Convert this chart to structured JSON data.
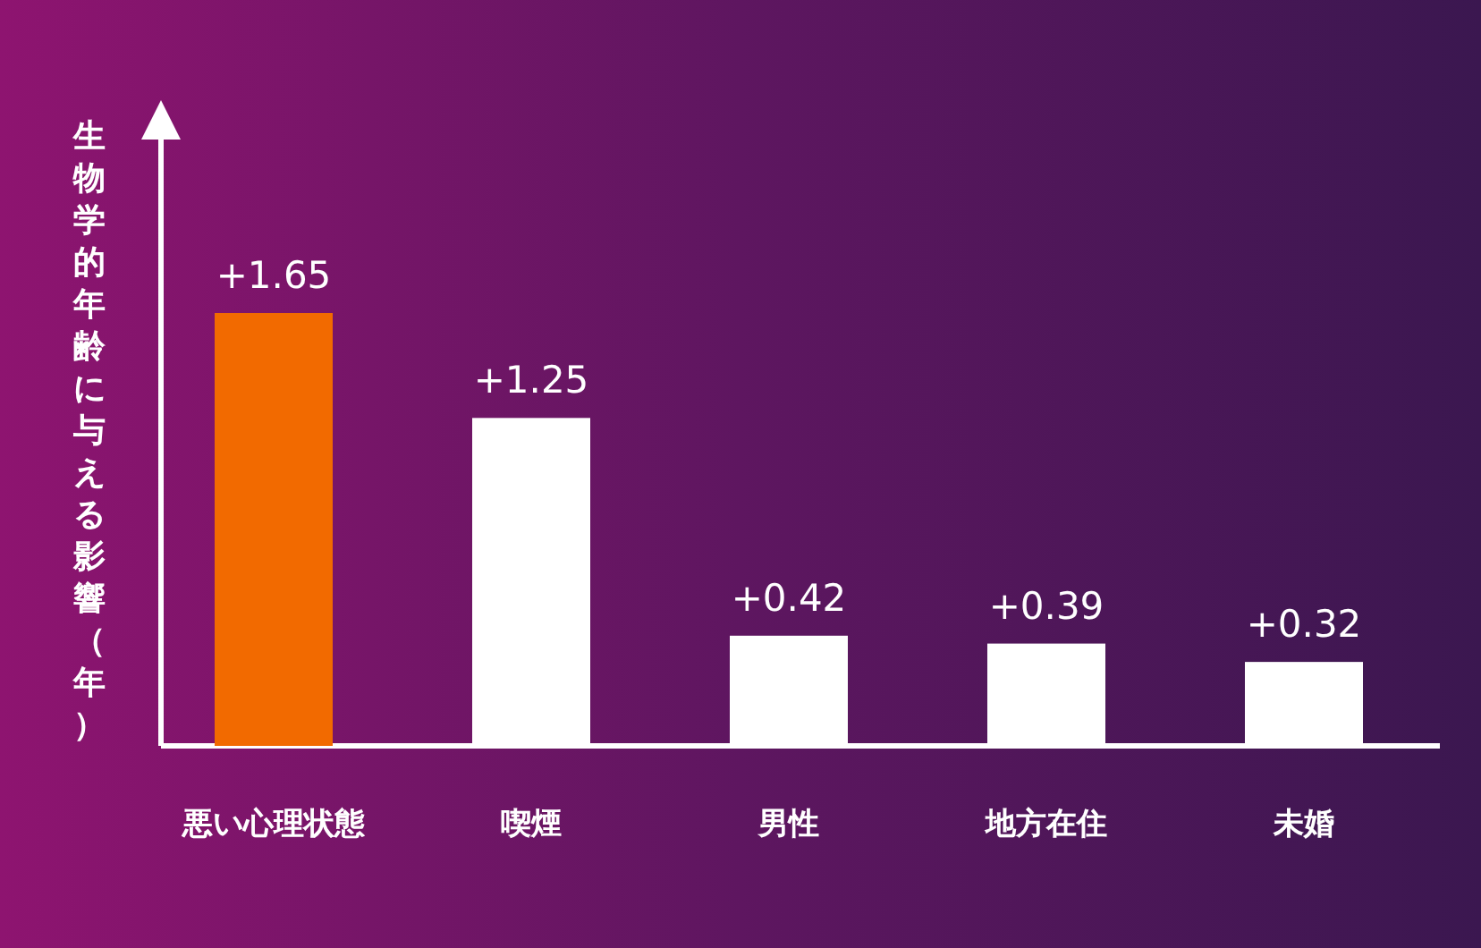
{
  "chart_data": {
    "type": "bar",
    "ylabel": "生物学的年齢に与える影響（年）",
    "categories": [
      "悪い心理状態",
      "喫煙",
      "男性",
      "地方在住",
      "未婚"
    ],
    "values": [
      1.65,
      1.25,
      0.42,
      0.39,
      0.32
    ],
    "colors": [
      "#f26a00",
      "#ffffff",
      "#ffffff",
      "#ffffff",
      "#ffffff"
    ],
    "value_labels": [
      "+1.65",
      "+1.25",
      "+0.42",
      "+0.39",
      "+0.32"
    ]
  }
}
